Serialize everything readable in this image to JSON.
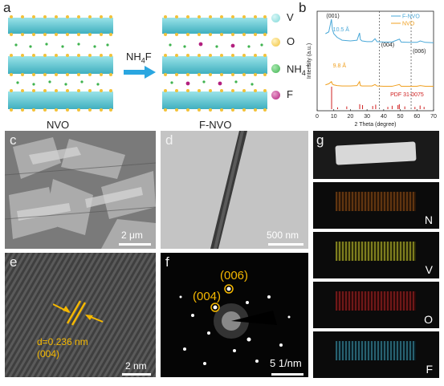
{
  "panels": {
    "a": {
      "label": "a",
      "left_caption": "NVO",
      "right_caption": "F-NVO",
      "arrow_label_main": "NH",
      "arrow_label_sub": "4",
      "arrow_label_end": "F",
      "legend": [
        {
          "label": "V",
          "color": "#7fd8d8"
        },
        {
          "label": "O",
          "color": "#f2c23a"
        },
        {
          "label": "NH",
          "sub": "4",
          "sup": "+",
          "color": "#3fb34f"
        },
        {
          "label": "F",
          "color": "#b3207f"
        }
      ]
    },
    "b": {
      "label": "b"
    },
    "c": {
      "label": "c",
      "scalebar": "2 μm"
    },
    "d": {
      "label": "d",
      "scalebar": "500 nm"
    },
    "e": {
      "label": "e",
      "scalebar": "2 nm",
      "d_spacing": "d=0.236 nm",
      "plane": "(004)"
    },
    "f": {
      "label": "f",
      "scalebar": "5 1/nm",
      "spot1": "(006)",
      "spot2": "(004)"
    },
    "g": {
      "label": "g",
      "maps": [
        "N",
        "V",
        "O",
        "F"
      ]
    }
  },
  "chart_data": {
    "type": "line",
    "xlabel": "2 Theta (degree)",
    "ylabel": "Intensity (a.u.)",
    "xlim": [
      0,
      70
    ],
    "xticks": [
      "0",
      "10",
      "20",
      "30",
      "40",
      "50",
      "60",
      "70"
    ],
    "series": [
      {
        "name": "F-NVO",
        "color": "#4aa8d8",
        "x": [
          5,
          7,
          8.6,
          9.2,
          10,
          12,
          15,
          20,
          24,
          25.5,
          26,
          27,
          30,
          33,
          34.8,
          36,
          40,
          45,
          49.5,
          50.5,
          55,
          60,
          62,
          65,
          70
        ],
        "y": [
          0.6,
          0.65,
          1.0,
          0.72,
          0.6,
          0.5,
          0.42,
          0.4,
          0.42,
          0.62,
          0.44,
          0.4,
          0.38,
          0.38,
          0.46,
          0.38,
          0.37,
          0.37,
          0.45,
          0.37,
          0.36,
          0.36,
          0.4,
          0.36,
          0.35
        ]
      },
      {
        "name": "NVO",
        "color": "#f0a020",
        "x": [
          5,
          7,
          8.6,
          9.2,
          10,
          12,
          15,
          20,
          24,
          25.5,
          26,
          27,
          30,
          33,
          34.8,
          36,
          40,
          45,
          49.5,
          50.5,
          55,
          60,
          62,
          65,
          70
        ],
        "y": [
          0.25,
          0.28,
          0.34,
          0.27,
          0.25,
          0.23,
          0.22,
          0.22,
          0.23,
          0.34,
          0.23,
          0.22,
          0.22,
          0.22,
          0.26,
          0.22,
          0.21,
          0.21,
          0.26,
          0.21,
          0.21,
          0.21,
          0.23,
          0.21,
          0.21
        ]
      }
    ],
    "reference": {
      "name": "PDF 31-0075",
      "color": "#d02020",
      "x": [
        8.7,
        12.3,
        17.8,
        25.6,
        27.3,
        33.4,
        35.2,
        42.5,
        45.1,
        48.6,
        49.4,
        52.7,
        58.8,
        61.9,
        64.3
      ],
      "h": [
        1.0,
        0.08,
        0.12,
        0.22,
        0.18,
        0.14,
        0.2,
        0.1,
        0.15,
        0.18,
        0.22,
        0.12,
        0.1,
        0.16,
        0.1
      ]
    },
    "annotations": {
      "peak_001": "(001)",
      "peak_004": "(004)",
      "peak_006": "(006)",
      "spacing_fnvo": "10.5 Å",
      "spacing_nvo": "9.8 Å"
    },
    "dashed_x": [
      37.5,
      56.5
    ]
  }
}
